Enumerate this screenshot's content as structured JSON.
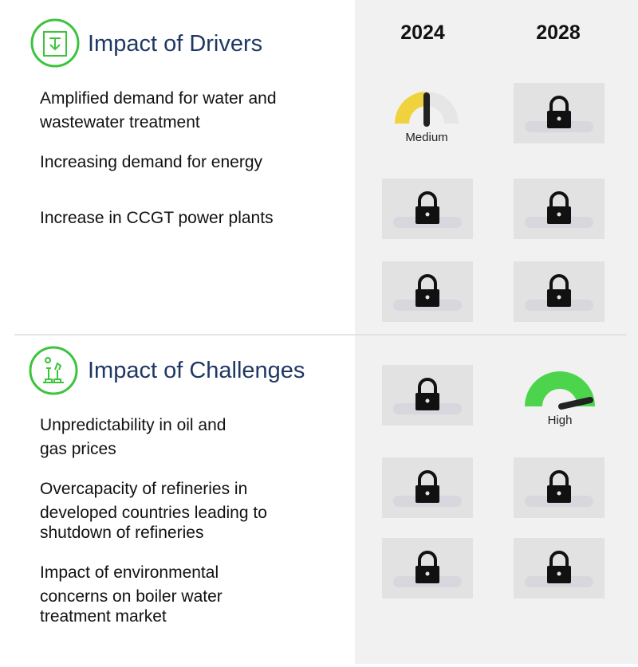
{
  "columns": [
    "2024",
    "2028"
  ],
  "drivers": {
    "title": "Impact of Drivers",
    "items": [
      {
        "lines": [
          "Amplified demand for water and",
          "wastewater treatment"
        ]
      },
      {
        "lines": [
          "Increasing demand for energy"
        ]
      },
      {
        "lines": [
          "Increase in CCGT power plants"
        ]
      }
    ],
    "gauge": {
      "label": "Medium"
    }
  },
  "challenges": {
    "title": "Impact of Challenges",
    "items": [
      {
        "lines": [
          "Unpredictability in oil and",
          "gas prices"
        ]
      },
      {
        "lines": [
          "Overcapacity of refineries in",
          "developed countries leading to",
          "shutdown of refineries"
        ]
      },
      {
        "lines": [
          "Impact of environmental",
          "concerns on boiler water",
          "treatment market"
        ]
      }
    ],
    "gauge": {
      "label": "High"
    }
  }
}
